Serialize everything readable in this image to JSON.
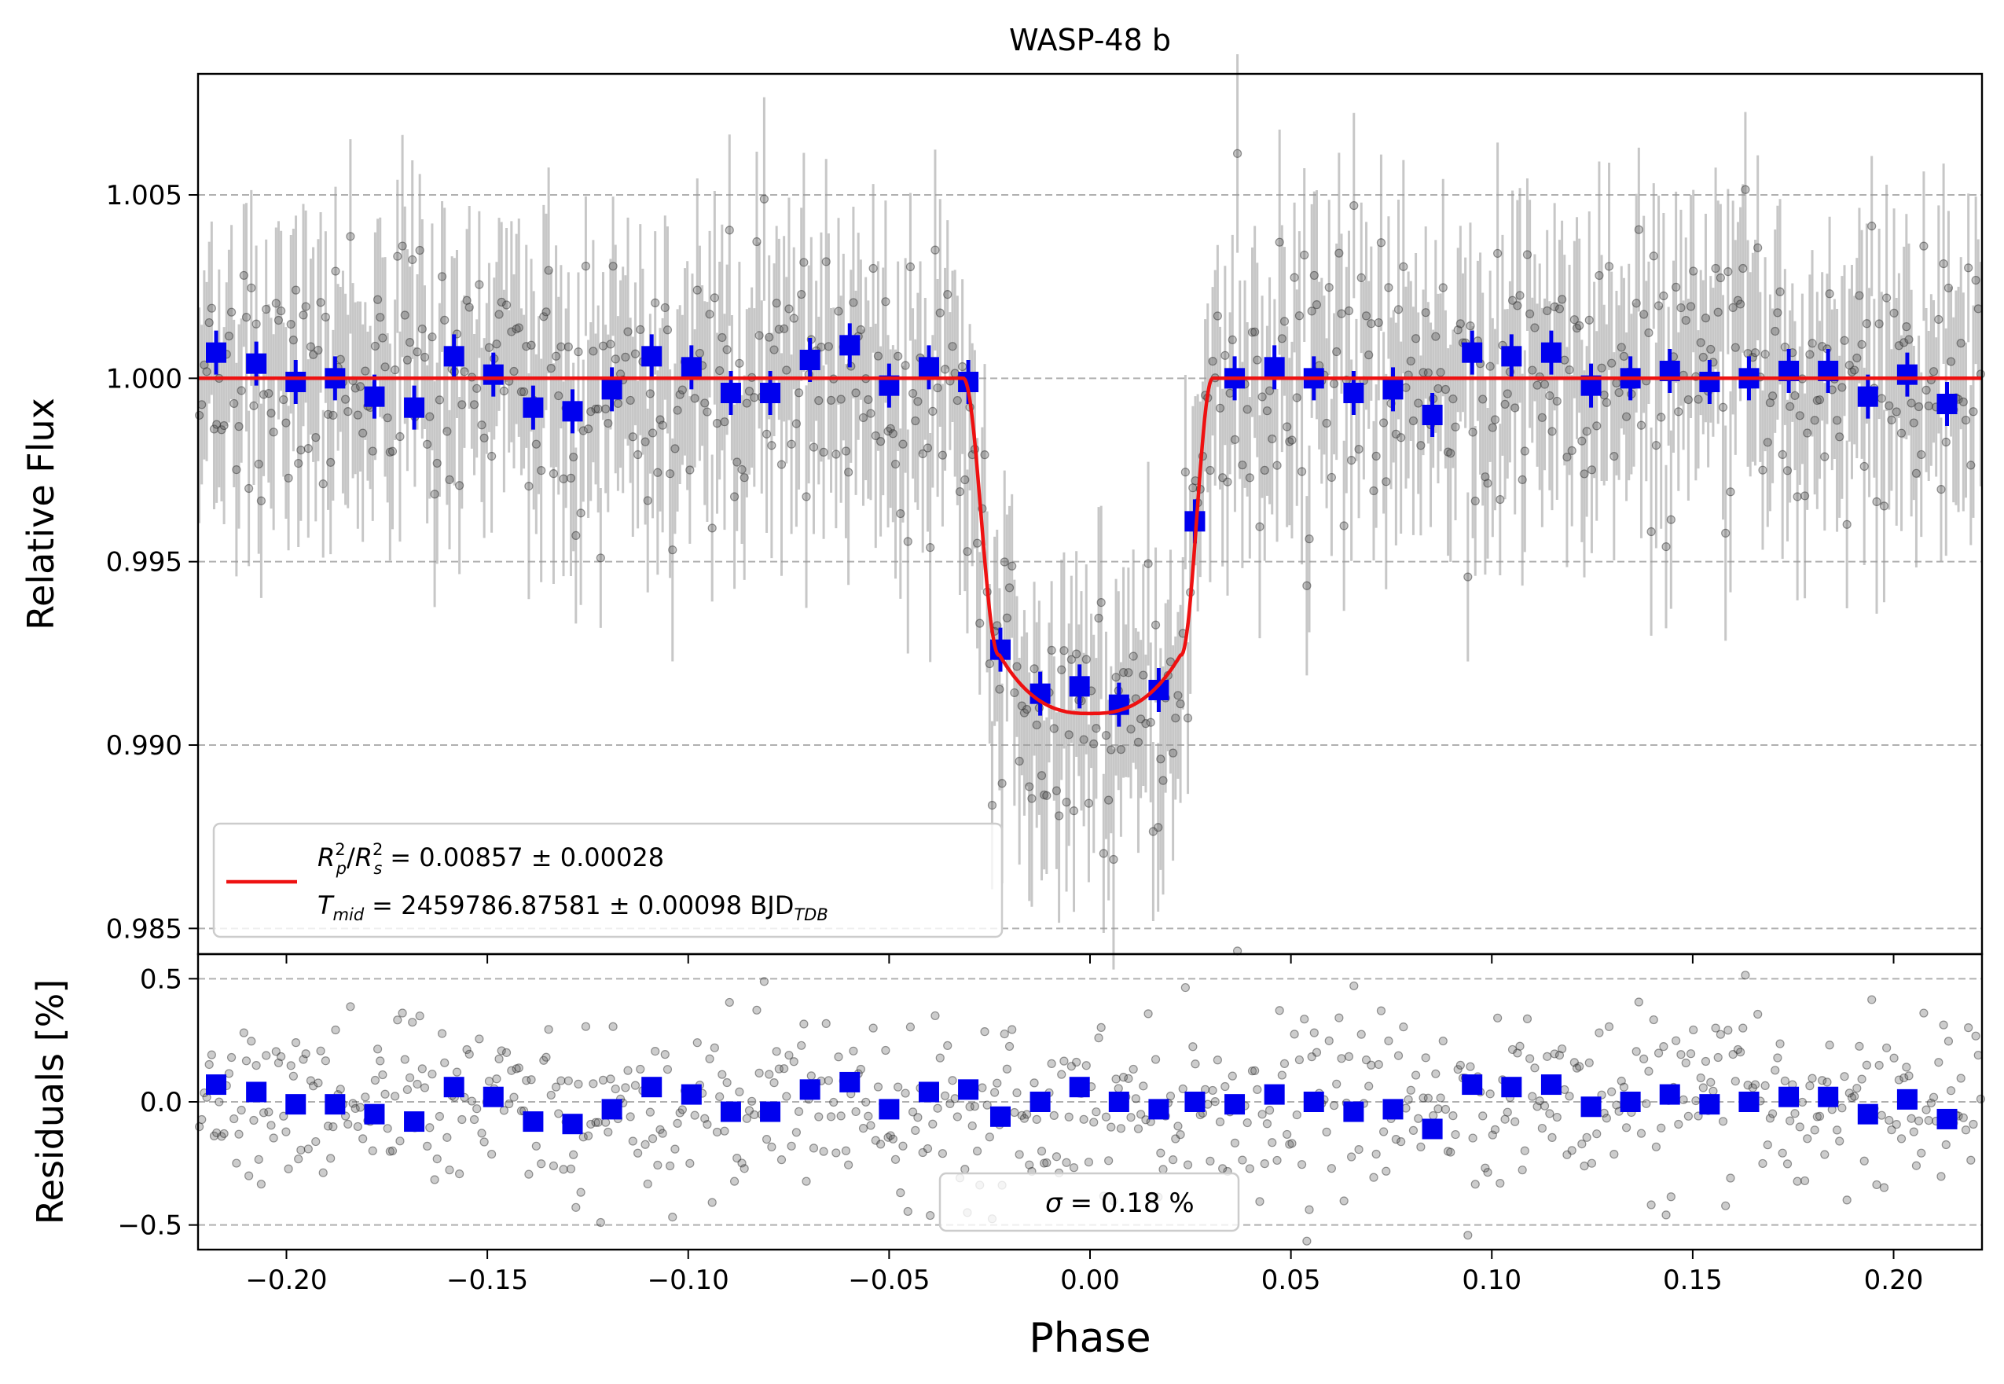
{
  "chart_data": [
    {
      "type": "scatter",
      "panel": "light-curve",
      "title": "WASP-48 b",
      "xlabel": "Phase",
      "ylabel": "Relative Flux",
      "xlim": [
        -0.222,
        0.222
      ],
      "ylim": [
        0.9843,
        1.0083
      ],
      "grid": "horizontal dashed",
      "x_ticks": [
        -0.2,
        -0.15,
        -0.1,
        -0.05,
        0.0,
        0.05,
        0.1,
        0.15,
        0.2
      ],
      "x_tick_labels": [
        "−0.20",
        "−0.15",
        "−0.10",
        "−0.05",
        "0.00",
        "0.05",
        "0.10",
        "0.15",
        "0.20"
      ],
      "y_ticks": [
        0.985,
        0.99,
        0.995,
        1.0,
        1.005
      ],
      "y_tick_labels": [
        "0.985",
        "0.990",
        "0.995",
        "1.000",
        "1.005"
      ],
      "model": {
        "color": "#ee1111",
        "depth": 0.00857,
        "t1": -0.0315,
        "t2": -0.0225,
        "t3": 0.0225,
        "t4": 0.0305,
        "bottom_center": 0.99086,
        "bottom_edge": 0.99245
      },
      "binned": {
        "color": "#0000ee",
        "x": [
          -0.2175,
          -0.2075,
          -0.1977,
          -0.1879,
          -0.1781,
          -0.1682,
          -0.1583,
          -0.1485,
          -0.1386,
          -0.1288,
          -0.119,
          -0.1091,
          -0.0992,
          -0.0894,
          -0.0796,
          -0.0697,
          -0.0598,
          -0.05,
          -0.0401,
          -0.0303,
          -0.0223,
          -0.0124,
          -0.0026,
          0.0072,
          0.0171,
          0.0261,
          0.036,
          0.0459,
          0.0557,
          0.0656,
          0.0754,
          0.0852,
          0.0951,
          0.1049,
          0.1148,
          0.1247,
          0.1345,
          0.1443,
          0.1542,
          0.164,
          0.1739,
          0.1837,
          0.1936,
          0.2034,
          0.2133
        ],
        "y": [
          1.0007,
          1.0004,
          0.9999,
          1.0,
          0.9995,
          0.9992,
          1.0006,
          1.0001,
          0.9992,
          0.9991,
          0.9997,
          1.0006,
          1.0003,
          0.9996,
          0.9996,
          1.0005,
          1.0009,
          0.9998,
          1.0003,
          0.9999,
          0.9926,
          0.9914,
          0.9916,
          0.9911,
          0.9915,
          0.9961,
          1.0,
          1.0003,
          1.0,
          0.9996,
          0.9997,
          0.999,
          1.0007,
          1.0006,
          1.0007,
          0.9998,
          1.0,
          1.0002,
          0.9999,
          1.0,
          1.0002,
          1.0002,
          0.9995,
          1.0001,
          0.9993
        ],
        "yerr": 0.0006
      },
      "raw": {
        "color": "#333333",
        "n_points": 720,
        "x_range": [
          -0.222,
          0.222
        ],
        "scatter_sigma": 0.0018,
        "typical_yerr": 0.0025
      },
      "legend": {
        "placement": "lower-left",
        "entries": [
          {
            "text": "R²p/R²s = 0.00857 ± 0.00028",
            "line1_prefix": "= 0.00857 ± 0.00028"
          },
          {
            "text": "Tmid = 2459786.87581 ± 0.00098 BJDTDB",
            "line2_value": "= 2459786.87581 ± 0.00098 BJD"
          }
        ]
      }
    },
    {
      "type": "scatter",
      "panel": "residuals",
      "xlabel": "Phase",
      "ylabel": "Residuals [%]",
      "xlim": [
        -0.222,
        0.222
      ],
      "ylim": [
        -0.6,
        0.6
      ],
      "grid": "horizontal dashed",
      "y_ticks": [
        -0.5,
        0.0,
        0.5
      ],
      "y_tick_labels": [
        "−0.5",
        "0.0",
        "0.5"
      ],
      "binned": {
        "color": "#0000ee",
        "y": [
          0.07,
          0.04,
          -0.01,
          -0.01,
          -0.05,
          -0.08,
          0.06,
          0.02,
          -0.08,
          -0.09,
          -0.03,
          0.06,
          0.03,
          -0.04,
          -0.04,
          0.05,
          0.08,
          -0.03,
          0.04,
          0.05,
          -0.06,
          0.0,
          0.06,
          0.0,
          -0.03,
          0.0,
          -0.01,
          0.03,
          0.0,
          -0.04,
          -0.03,
          -0.11,
          0.07,
          0.06,
          0.07,
          -0.02,
          0.0,
          0.03,
          -0.01,
          0.0,
          0.02,
          0.02,
          -0.05,
          0.01,
          -0.07
        ]
      },
      "legend": {
        "placement": "lower-center",
        "text": "σ = 0.18 %",
        "value": "= 0.18 %"
      }
    }
  ]
}
